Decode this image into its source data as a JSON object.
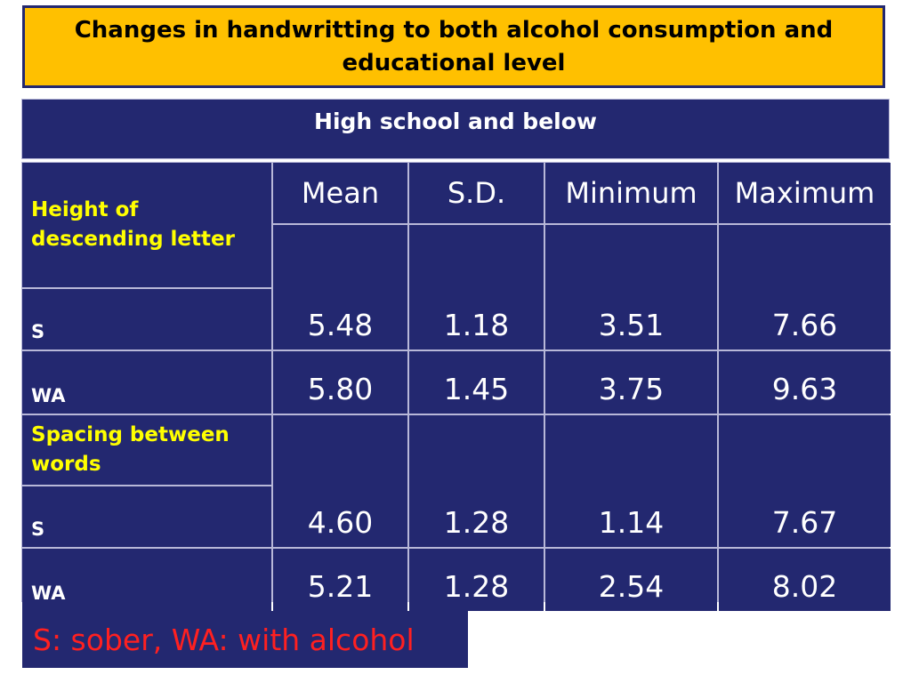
{
  "title": "Changes in handwritting to both alcohol consumption and educational level",
  "group_header": "High school and below",
  "columns": [
    "Mean",
    "S.D.",
    "Minimum",
    "Maximum"
  ],
  "sections": [
    {
      "label": "Height of descending letter",
      "rows": [
        {
          "label": "S",
          "values": [
            "5.48",
            "1.18",
            "3.51",
            "7.66"
          ]
        },
        {
          "label": "WA",
          "values": [
            "5.80",
            "1.45",
            "3.75",
            "9.63"
          ]
        }
      ]
    },
    {
      "label": "Spacing between words",
      "rows": [
        {
          "label": "S",
          "values": [
            "4.60",
            "1.28",
            "1.14",
            "7.67"
          ]
        },
        {
          "label": "WA",
          "values": [
            "5.21",
            "1.28",
            "2.54",
            "8.02"
          ]
        }
      ]
    }
  ],
  "footnote": "S: sober, WA: with alcohol",
  "colors": {
    "title_bg": "#ffc000",
    "table_bg": "#232870",
    "section_label": "#ffff00",
    "footnote_text": "#ff2020"
  }
}
